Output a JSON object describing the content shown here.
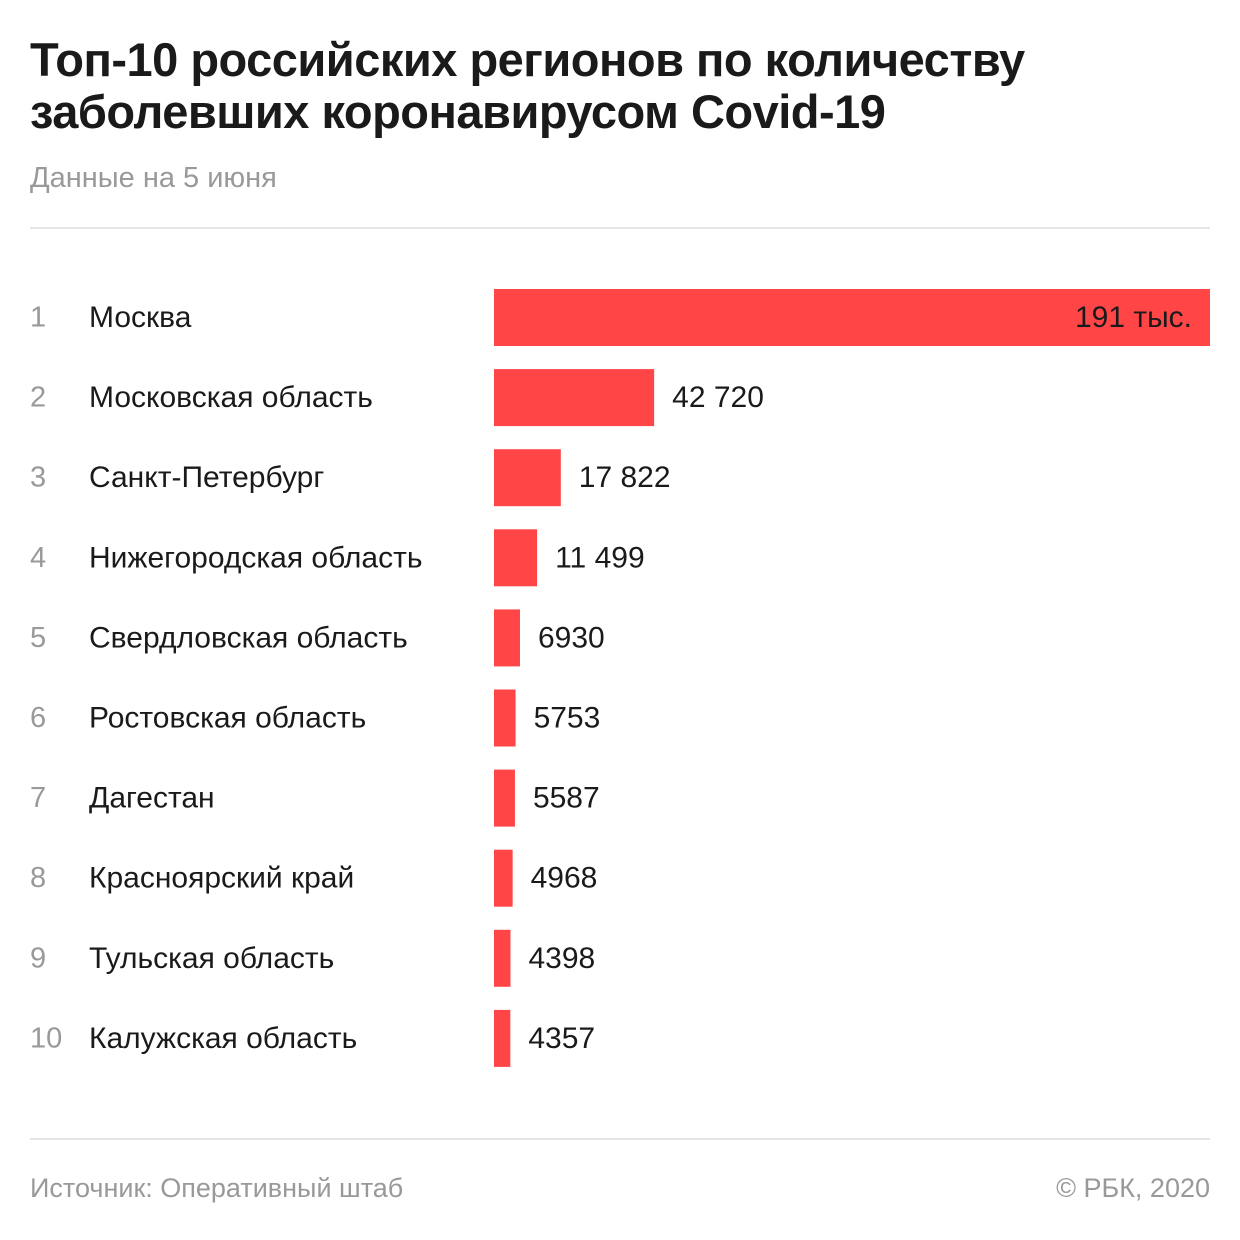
{
  "chart_data": {
    "type": "bar",
    "orientation": "horizontal",
    "title": "Топ-10 российских регионов по количеству заболевших коронавирусом Covid-19",
    "subtitle": "Данные на 5 июня",
    "ranks": [
      "1",
      "2",
      "3",
      "4",
      "5",
      "6",
      "7",
      "8",
      "9",
      "10"
    ],
    "categories": [
      "Москва",
      "Московская область",
      "Санкт-Петербург",
      "Нижегородская область",
      "Свердловская область",
      "Ростовская область",
      "Дагестан",
      "Красноярский край",
      "Тульская область",
      "Калужская область"
    ],
    "values": [
      191000,
      42720,
      17822,
      11499,
      6930,
      5753,
      5587,
      4968,
      4398,
      4357
    ],
    "value_labels": [
      "191 тыс.",
      "42 720",
      "17 822",
      "11 499",
      "6930",
      "5753",
      "5587",
      "4968",
      "4398",
      "4357"
    ],
    "bar_color": "#ff4545",
    "grid": false
  },
  "footer": {
    "source": "Источник: Оперативный штаб",
    "copyright": "© РБК, 2020"
  }
}
